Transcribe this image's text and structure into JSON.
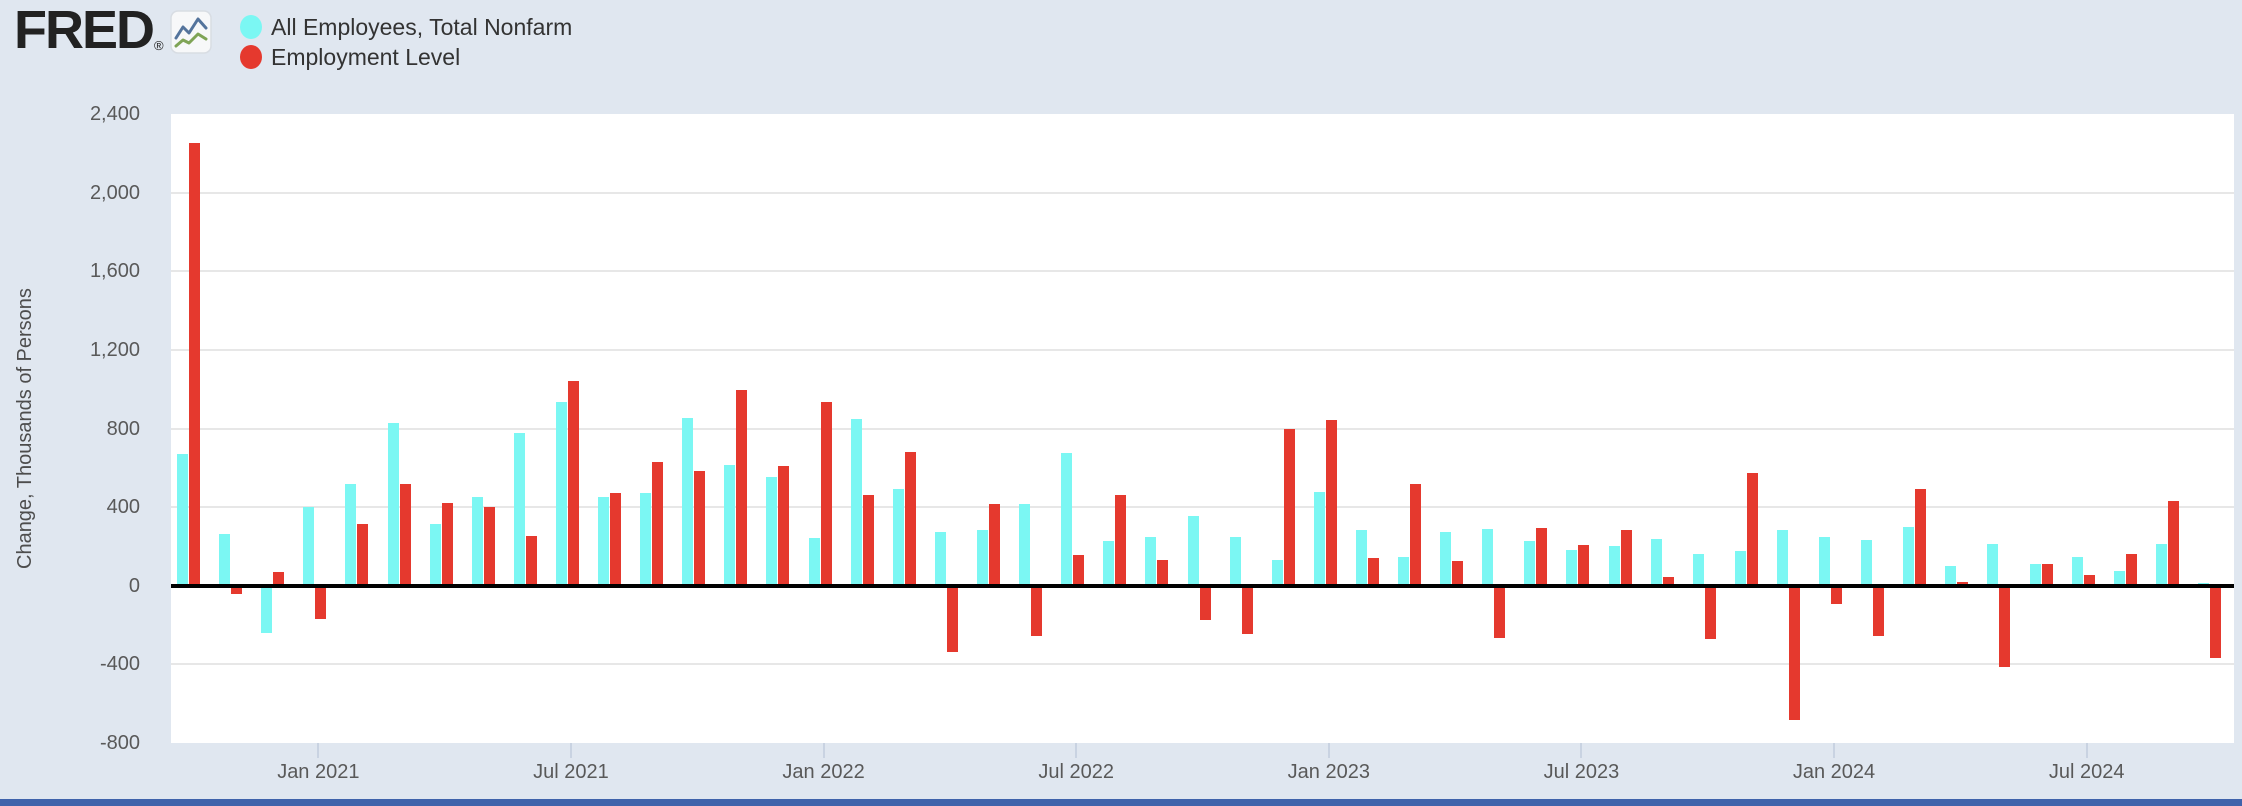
{
  "header": {
    "logo_text": "FRED",
    "logo_registered": "®",
    "logo_icon": "line-chart-icon",
    "legend": [
      {
        "id": "nonfarm",
        "label": "All Employees, Total Nonfarm",
        "color": "#7bf7f3"
      },
      {
        "id": "employment",
        "label": "Employment Level",
        "color": "#e5392e"
      }
    ]
  },
  "y_axis": {
    "title": "Change, Thousands of Persons",
    "ticks": [
      {
        "label": "2,400",
        "value": 2400
      },
      {
        "label": "2,000",
        "value": 2000
      },
      {
        "label": "1,600",
        "value": 1600
      },
      {
        "label": "1,200",
        "value": 1200
      },
      {
        "label": "800",
        "value": 800
      },
      {
        "label": "400",
        "value": 400
      },
      {
        "label": "0",
        "value": 0
      },
      {
        "label": "-400",
        "value": -400
      },
      {
        "label": "-800",
        "value": -800
      }
    ]
  },
  "x_axis": {
    "ticks": [
      "Jan 2021",
      "Jul 2021",
      "Jan 2022",
      "Jul 2022",
      "Jan 2023",
      "Jul 2023",
      "Jan 2024",
      "Jul 2024"
    ]
  },
  "chart_data": {
    "type": "bar",
    "ylabel": "Change, Thousands of Persons",
    "ylim": [
      -800,
      2400
    ],
    "gridline_step": 400,
    "zero_line": true,
    "legend_position": "top-left",
    "categories": [
      "Oct 2020",
      "Nov 2020",
      "Dec 2020",
      "Jan 2021",
      "Feb 2021",
      "Mar 2021",
      "Apr 2021",
      "May 2021",
      "Jun 2021",
      "Jul 2021",
      "Aug 2021",
      "Sep 2021",
      "Oct 2021",
      "Nov 2021",
      "Dec 2021",
      "Jan 2022",
      "Feb 2022",
      "Mar 2022",
      "Apr 2022",
      "May 2022",
      "Jun 2022",
      "Jul 2022",
      "Aug 2022",
      "Sep 2022",
      "Oct 2022",
      "Nov 2022",
      "Dec 2022",
      "Jan 2023",
      "Feb 2023",
      "Mar 2023",
      "Apr 2023",
      "May 2023",
      "Jun 2023",
      "Jul 2023",
      "Aug 2023",
      "Sep 2023",
      "Oct 2023",
      "Nov 2023",
      "Dec 2023",
      "Jan 2024",
      "Feb 2024",
      "Mar 2024",
      "Apr 2024",
      "May 2024",
      "Jun 2024",
      "Jul 2024",
      "Aug 2024",
      "Sep 2024",
      "Oct 2024"
    ],
    "series": [
      {
        "name": "All Employees, Total Nonfarm",
        "color": "#7bf7f3",
        "values": [
          670,
          265,
          -240,
          400,
          520,
          830,
          315,
          450,
          775,
          935,
          450,
          470,
          855,
          615,
          555,
          245,
          850,
          490,
          275,
          285,
          415,
          675,
          230,
          250,
          355,
          250,
          130,
          475,
          285,
          145,
          275,
          290,
          230,
          180,
          200,
          240,
          160,
          175,
          285,
          250,
          235,
          300,
          100,
          210,
          110,
          145,
          75,
          210,
          12
        ]
      },
      {
        "name": "Employment Level",
        "color": "#e5392e",
        "values": [
          2250,
          -40,
          70,
          -170,
          315,
          520,
          420,
          400,
          255,
          1040,
          470,
          630,
          585,
          995,
          610,
          935,
          460,
          680,
          -335,
          415,
          -255,
          155,
          460,
          130,
          -175,
          -245,
          800,
          845,
          140,
          520,
          125,
          -265,
          295,
          205,
          285,
          45,
          -270,
          575,
          -685,
          -95,
          -255,
          490,
          20,
          -415,
          110,
          55,
          160,
          430,
          -370
        ]
      }
    ]
  },
  "footer": {
    "bar_color": "#3f63ab"
  }
}
